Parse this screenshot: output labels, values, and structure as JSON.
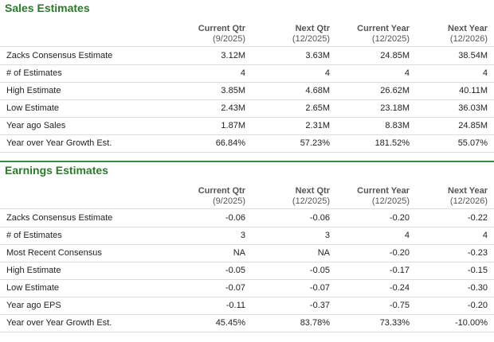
{
  "sections": [
    {
      "title": "Sales Estimates",
      "columns": [
        {
          "name": "Current Qtr",
          "period": "(9/2025)"
        },
        {
          "name": "Next Qtr",
          "period": "(12/2025)"
        },
        {
          "name": "Current Year",
          "period": "(12/2025)"
        },
        {
          "name": "Next Year",
          "period": "(12/2026)"
        }
      ],
      "rows": [
        [
          "Zacks Consensus Estimate",
          "3.12M",
          "3.63M",
          "24.85M",
          "38.54M"
        ],
        [
          "# of Estimates",
          "4",
          "4",
          "4",
          "4"
        ],
        [
          "High Estimate",
          "3.85M",
          "4.68M",
          "26.62M",
          "40.11M"
        ],
        [
          "Low Estimate",
          "2.43M",
          "2.65M",
          "23.18M",
          "36.03M"
        ],
        [
          "Year ago Sales",
          "1.87M",
          "2.31M",
          "8.83M",
          "24.85M"
        ],
        [
          "Year over Year Growth Est.",
          "66.84%",
          "57.23%",
          "181.52%",
          "55.07%"
        ]
      ]
    },
    {
      "title": "Earnings Estimates",
      "columns": [
        {
          "name": "Current Qtr",
          "period": "(9/2025)"
        },
        {
          "name": "Next Qtr",
          "period": "(12/2025)"
        },
        {
          "name": "Current Year",
          "period": "(12/2025)"
        },
        {
          "name": "Next Year",
          "period": "(12/2026)"
        }
      ],
      "rows": [
        [
          "Zacks Consensus Estimate",
          "-0.06",
          "-0.06",
          "-0.20",
          "-0.22"
        ],
        [
          "# of Estimates",
          "3",
          "3",
          "4",
          "4"
        ],
        [
          "Most Recent Consensus",
          "NA",
          "NA",
          "-0.20",
          "-0.23"
        ],
        [
          "High Estimate",
          "-0.05",
          "-0.05",
          "-0.17",
          "-0.15"
        ],
        [
          "Low Estimate",
          "-0.07",
          "-0.07",
          "-0.24",
          "-0.30"
        ],
        [
          "Year ago EPS",
          "-0.11",
          "-0.37",
          "-0.75",
          "-0.20"
        ],
        [
          "Year over Year Growth Est.",
          "45.45%",
          "83.78%",
          "73.33%",
          "-10.00%"
        ]
      ]
    }
  ]
}
